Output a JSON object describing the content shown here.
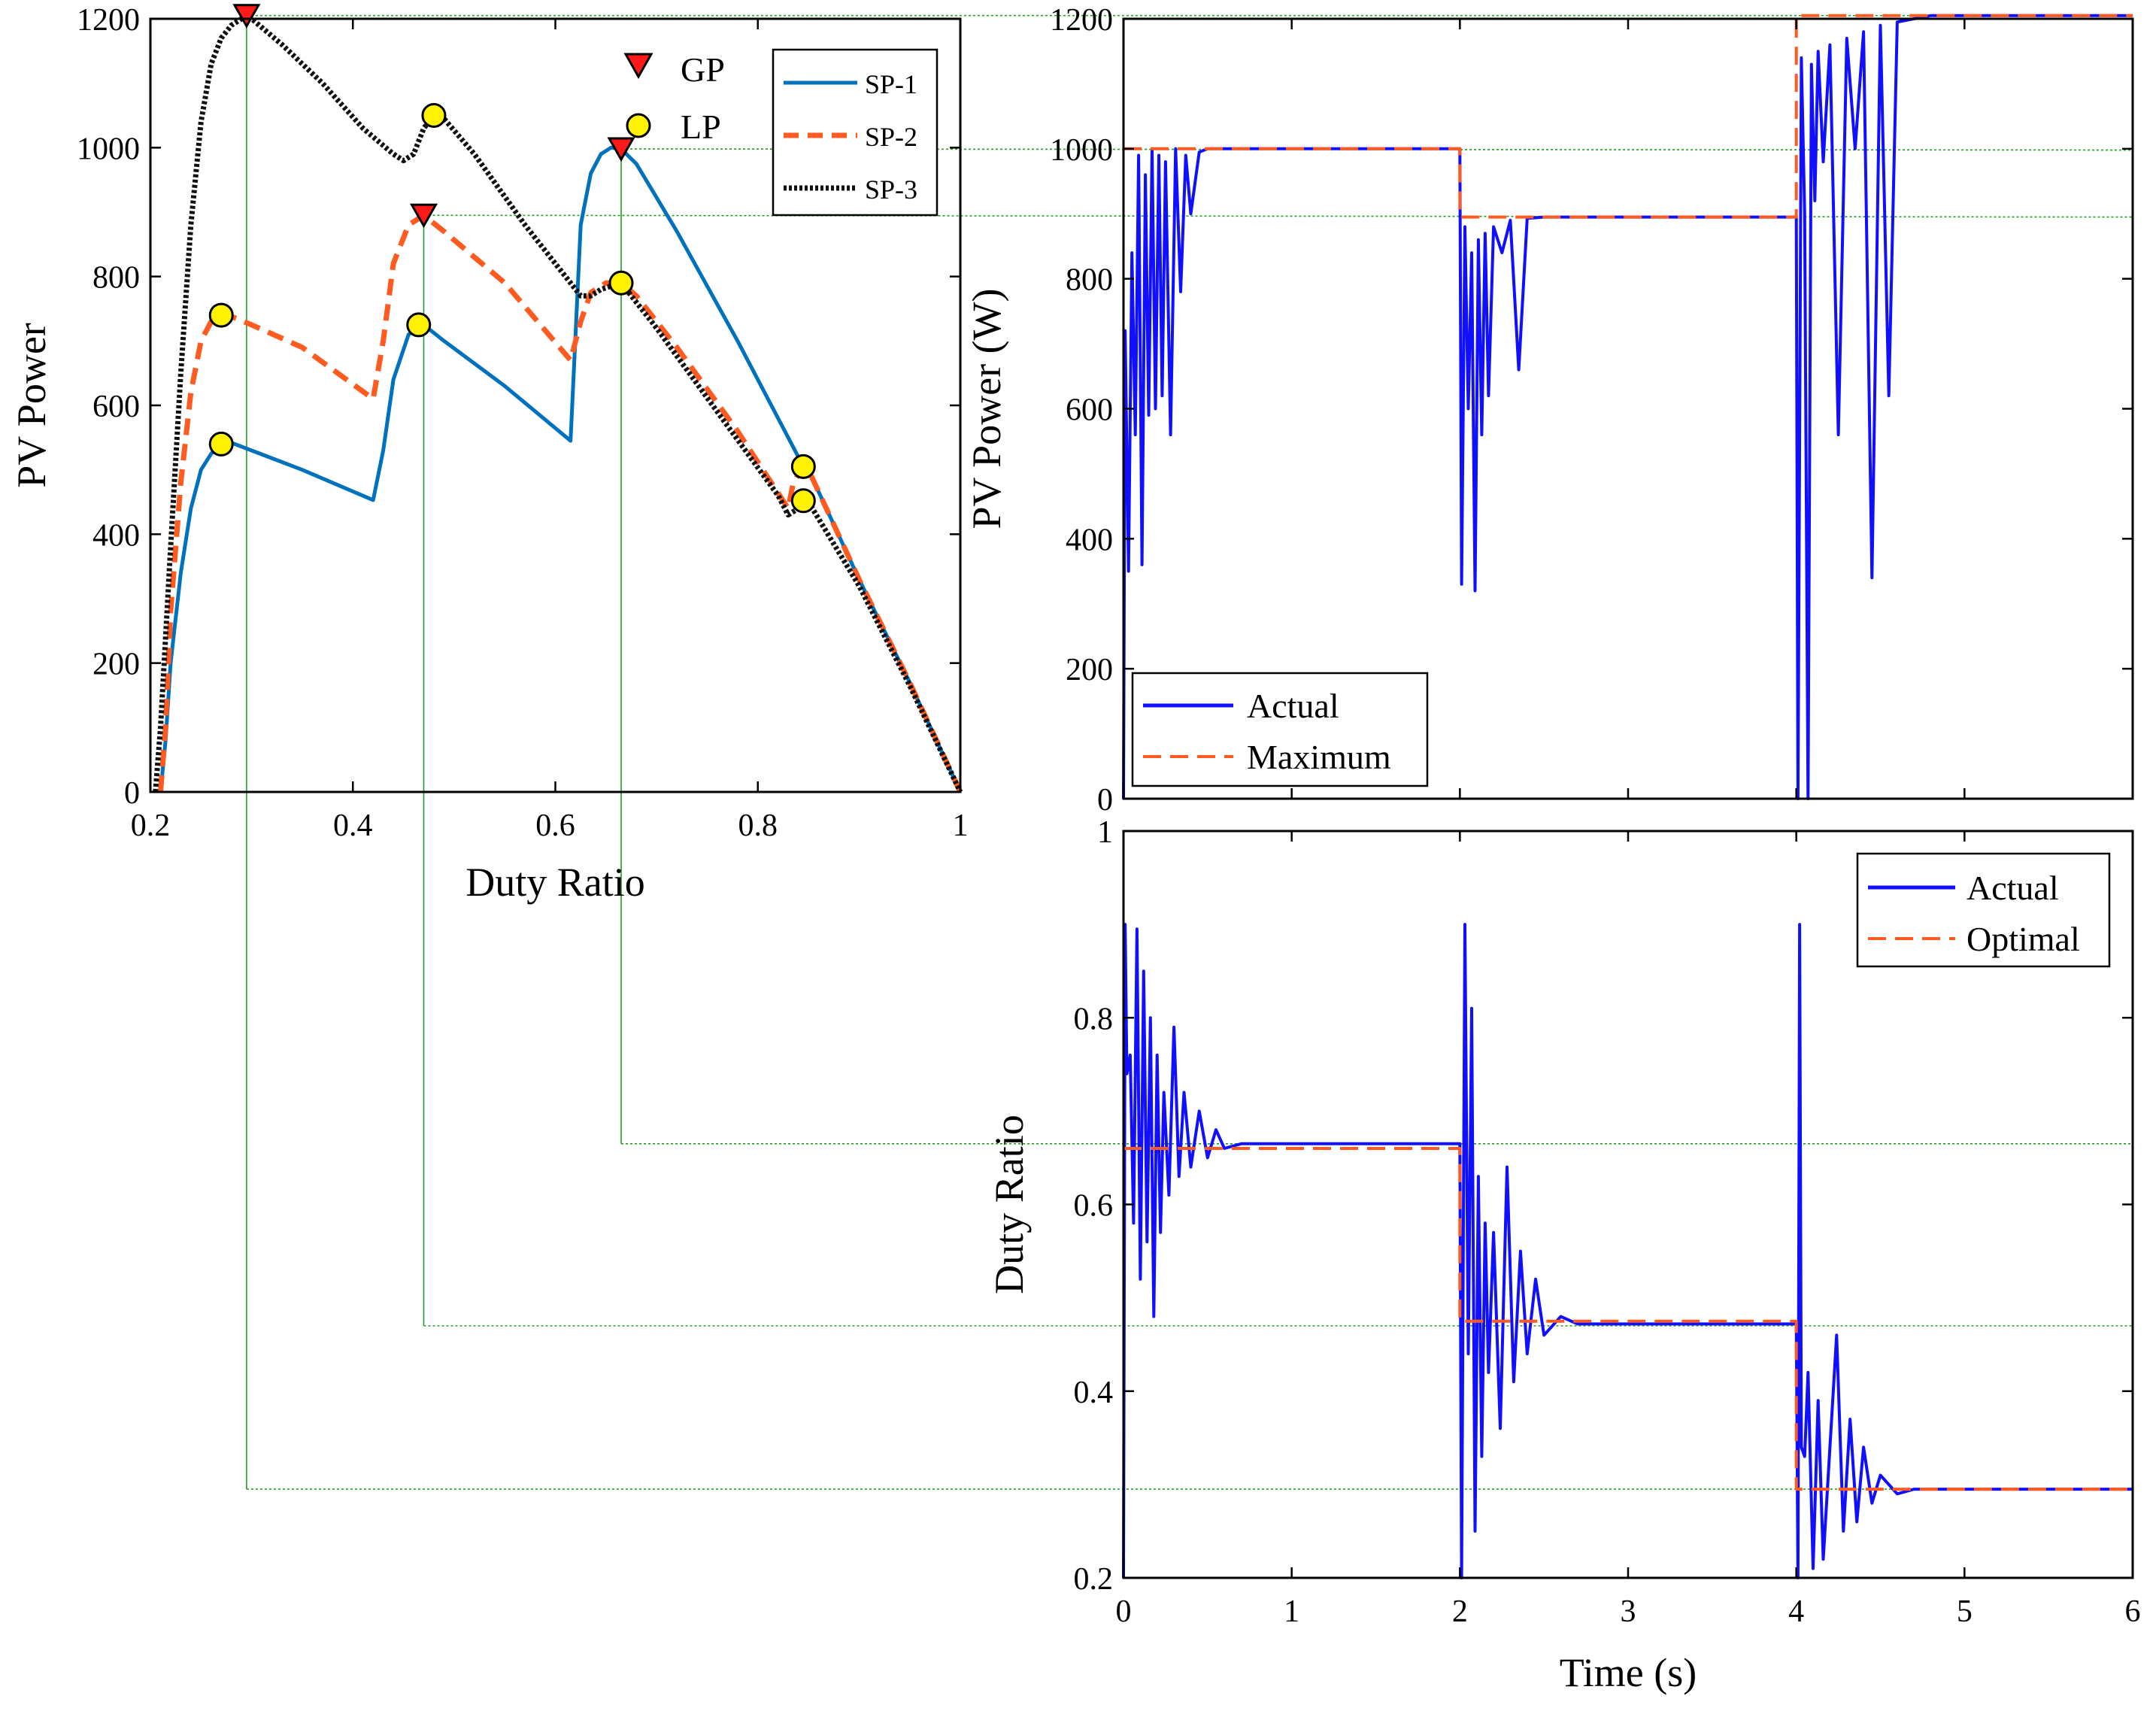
{
  "colors": {
    "sp1": "#0072BD",
    "sp2": "#FF5A1F",
    "sp3": "#111111",
    "actual": "#1010FF",
    "reference": "#FF5A1F",
    "guide": "#1FA01F",
    "gp_marker": "#FF1A1A",
    "lp_marker": "#FFF200"
  },
  "icons": {
    "gp": "down-triangle-marker",
    "lp": "circle-marker"
  },
  "chart_data": [
    {
      "type": "line",
      "xlabel": "Duty Ratio",
      "ylabel": "PV Power",
      "xlim": [
        0.2,
        1
      ],
      "ylim": [
        0,
        1200
      ],
      "xticks": [
        "0.2",
        "0.4",
        "0.6",
        "0.8",
        "1"
      ],
      "yticks": [
        "0",
        "200",
        "400",
        "600",
        "800",
        "1000",
        "1200"
      ],
      "grid": false,
      "legend_markers": {
        "position": "top-center",
        "entries": [
          "GP",
          "LP"
        ]
      },
      "legend_lines": {
        "position": "top-right",
        "entries": [
          "SP-1",
          "SP-2",
          "SP-3"
        ]
      },
      "series": [
        {
          "name": "SP-1",
          "x": [
            0.21,
            0.215,
            0.22,
            0.23,
            0.24,
            0.25,
            0.26,
            0.27,
            0.28,
            0.3,
            0.35,
            0.42,
            0.43,
            0.44,
            0.455,
            0.47,
            0.49,
            0.55,
            0.615,
            0.625,
            0.635,
            0.645,
            0.655,
            0.665,
            0.68,
            0.72,
            0.78,
            0.84,
            0.85,
            0.9,
            0.95,
            1.0
          ],
          "y": [
            0,
            80,
            200,
            340,
            440,
            500,
            525,
            540,
            542,
            530,
            500,
            453,
            530,
            640,
            710,
            725,
            700,
            630,
            545,
            880,
            960,
            990,
            1000,
            998,
            975,
            870,
            700,
            520,
            500,
            330,
            170,
            0
          ]
        },
        {
          "name": "SP-2",
          "x": [
            0.21,
            0.215,
            0.22,
            0.23,
            0.24,
            0.25,
            0.26,
            0.27,
            0.28,
            0.3,
            0.35,
            0.42,
            0.43,
            0.44,
            0.455,
            0.47,
            0.49,
            0.55,
            0.615,
            0.625,
            0.635,
            0.65,
            0.665,
            0.68,
            0.72,
            0.78,
            0.83,
            0.835,
            0.845,
            0.85,
            0.9,
            0.95,
            1.0
          ],
          "y": [
            0,
            100,
            280,
            480,
            620,
            700,
            730,
            740,
            738,
            725,
            690,
            610,
            700,
            820,
            880,
            895,
            870,
            790,
            670,
            730,
            775,
            790,
            790,
            770,
            690,
            560,
            440,
            480,
            505,
            500,
            330,
            170,
            0
          ]
        },
        {
          "name": "SP-3",
          "x": [
            0.205,
            0.21,
            0.22,
            0.23,
            0.24,
            0.25,
            0.26,
            0.27,
            0.28,
            0.29,
            0.295,
            0.3,
            0.33,
            0.37,
            0.41,
            0.44,
            0.45,
            0.46,
            0.47,
            0.48,
            0.49,
            0.52,
            0.57,
            0.61,
            0.625,
            0.635,
            0.645,
            0.665,
            0.7,
            0.76,
            0.82,
            0.83,
            0.84,
            0.845,
            0.85,
            0.9,
            0.95,
            1.0
          ],
          "y": [
            0,
            100,
            380,
            650,
            880,
            1040,
            1130,
            1170,
            1190,
            1200,
            1205,
            1200,
            1160,
            1100,
            1030,
            990,
            980,
            990,
            1030,
            1050,
            1045,
            990,
            880,
            800,
            770,
            770,
            780,
            790,
            720,
            590,
            460,
            430,
            440,
            452,
            450,
            320,
            165,
            0
          ]
        }
      ],
      "gp_points": [
        {
          "x": 0.295,
          "y": 1205
        },
        {
          "x": 0.665,
          "y": 998
        },
        {
          "x": 0.47,
          "y": 895
        }
      ],
      "lp_points": [
        {
          "x": 0.48,
          "y": 1050
        },
        {
          "x": 0.665,
          "y": 790
        },
        {
          "x": 0.27,
          "y": 740
        },
        {
          "x": 0.465,
          "y": 725
        },
        {
          "x": 0.27,
          "y": 540
        },
        {
          "x": 0.845,
          "y": 505
        },
        {
          "x": 0.845,
          "y": 452
        }
      ]
    },
    {
      "type": "line",
      "xlabel": "",
      "ylabel": "PV Power (W)",
      "xlim": [
        0,
        6
      ],
      "ylim": [
        0,
        1200
      ],
      "yticks": [
        "0",
        "200",
        "400",
        "600",
        "800",
        "1000",
        "1200"
      ],
      "grid": false,
      "legend": {
        "position": "bottom-left",
        "entries": [
          "Actual",
          "Maximum"
        ]
      },
      "series": [
        {
          "name": "Maximum",
          "x": [
            0,
            2,
            2,
            4,
            4,
            6
          ],
          "y": [
            1000,
            1000,
            895,
            895,
            1205,
            1205
          ]
        },
        {
          "name": "Actual",
          "x": [
            0,
            0.01,
            0.03,
            0.05,
            0.07,
            0.09,
            0.11,
            0.13,
            0.15,
            0.17,
            0.19,
            0.21,
            0.23,
            0.25,
            0.28,
            0.31,
            0.34,
            0.37,
            0.4,
            0.45,
            0.5,
            0.6,
            0.7,
            0.8,
            2.0,
            2.01,
            2.03,
            2.05,
            2.07,
            2.09,
            2.11,
            2.13,
            2.15,
            2.17,
            2.2,
            2.25,
            2.3,
            2.35,
            2.4,
            2.5,
            2.6,
            2.7,
            2.8,
            3.0,
            4.0,
            4.01,
            4.03,
            4.05,
            4.07,
            4.09,
            4.11,
            4.13,
            4.16,
            4.2,
            4.25,
            4.3,
            4.35,
            4.4,
            4.45,
            4.5,
            4.55,
            4.6,
            4.7,
            4.8,
            6.0
          ],
          "y": [
            0,
            720,
            350,
            840,
            560,
            990,
            360,
            960,
            590,
            1000,
            600,
            990,
            620,
            980,
            560,
            1000,
            780,
            990,
            900,
            995,
            1000,
            1000,
            1000,
            1000,
            1000,
            330,
            880,
            600,
            840,
            320,
            860,
            560,
            870,
            620,
            880,
            840,
            890,
            660,
            893,
            895,
            895,
            895,
            895,
            895,
            895,
            0,
            1140,
            900,
            0,
            1130,
            920,
            1150,
            980,
            1160,
            560,
            1170,
            1000,
            1180,
            340,
            1190,
            620,
            1195,
            1200,
            1205,
            1205
          ]
        }
      ]
    },
    {
      "type": "line",
      "xlabel": "Time (s)",
      "ylabel": "Duty Ratio",
      "xlim": [
        0,
        6
      ],
      "ylim": [
        0.2,
        1
      ],
      "xticks": [
        "0",
        "1",
        "2",
        "3",
        "4",
        "5",
        "6"
      ],
      "yticks": [
        "0.2",
        "0.4",
        "0.6",
        "0.8",
        "1"
      ],
      "grid": false,
      "legend": {
        "position": "top-right",
        "entries": [
          "Actual",
          "Optimal"
        ]
      },
      "series": [
        {
          "name": "Optimal",
          "x": [
            0,
            2,
            2,
            4,
            4,
            6
          ],
          "y": [
            0.66,
            0.66,
            0.475,
            0.475,
            0.295,
            0.295
          ]
        },
        {
          "name": "Actual",
          "x": [
            0,
            0.01,
            0.02,
            0.04,
            0.06,
            0.08,
            0.1,
            0.12,
            0.14,
            0.16,
            0.18,
            0.2,
            0.22,
            0.24,
            0.27,
            0.3,
            0.33,
            0.36,
            0.4,
            0.45,
            0.5,
            0.55,
            0.6,
            0.7,
            0.8,
            2.0,
            2.01,
            2.03,
            2.05,
            2.07,
            2.09,
            2.11,
            2.13,
            2.15,
            2.17,
            2.2,
            2.24,
            2.28,
            2.32,
            2.36,
            2.4,
            2.45,
            2.5,
            2.6,
            2.7,
            3.0,
            4.0,
            4.01,
            4.02,
            4.03,
            4.05,
            4.07,
            4.1,
            4.13,
            4.16,
            4.2,
            4.24,
            4.28,
            4.32,
            4.36,
            4.4,
            4.45,
            4.5,
            4.6,
            4.7,
            4.8,
            6.0
          ],
          "y": [
            0.2,
            0.9,
            0.74,
            0.76,
            0.58,
            0.895,
            0.52,
            0.85,
            0.56,
            0.8,
            0.48,
            0.76,
            0.57,
            0.72,
            0.61,
            0.79,
            0.63,
            0.72,
            0.64,
            0.7,
            0.65,
            0.68,
            0.66,
            0.665,
            0.665,
            0.665,
            0.2,
            0.9,
            0.44,
            0.81,
            0.25,
            0.63,
            0.33,
            0.58,
            0.42,
            0.57,
            0.36,
            0.64,
            0.41,
            0.55,
            0.44,
            0.52,
            0.46,
            0.48,
            0.472,
            0.472,
            0.472,
            0.2,
            0.9,
            0.34,
            0.33,
            0.42,
            0.21,
            0.39,
            0.22,
            0.34,
            0.46,
            0.25,
            0.37,
            0.26,
            0.34,
            0.28,
            0.31,
            0.29,
            0.295,
            0.295,
            0.295
          ]
        }
      ]
    }
  ]
}
